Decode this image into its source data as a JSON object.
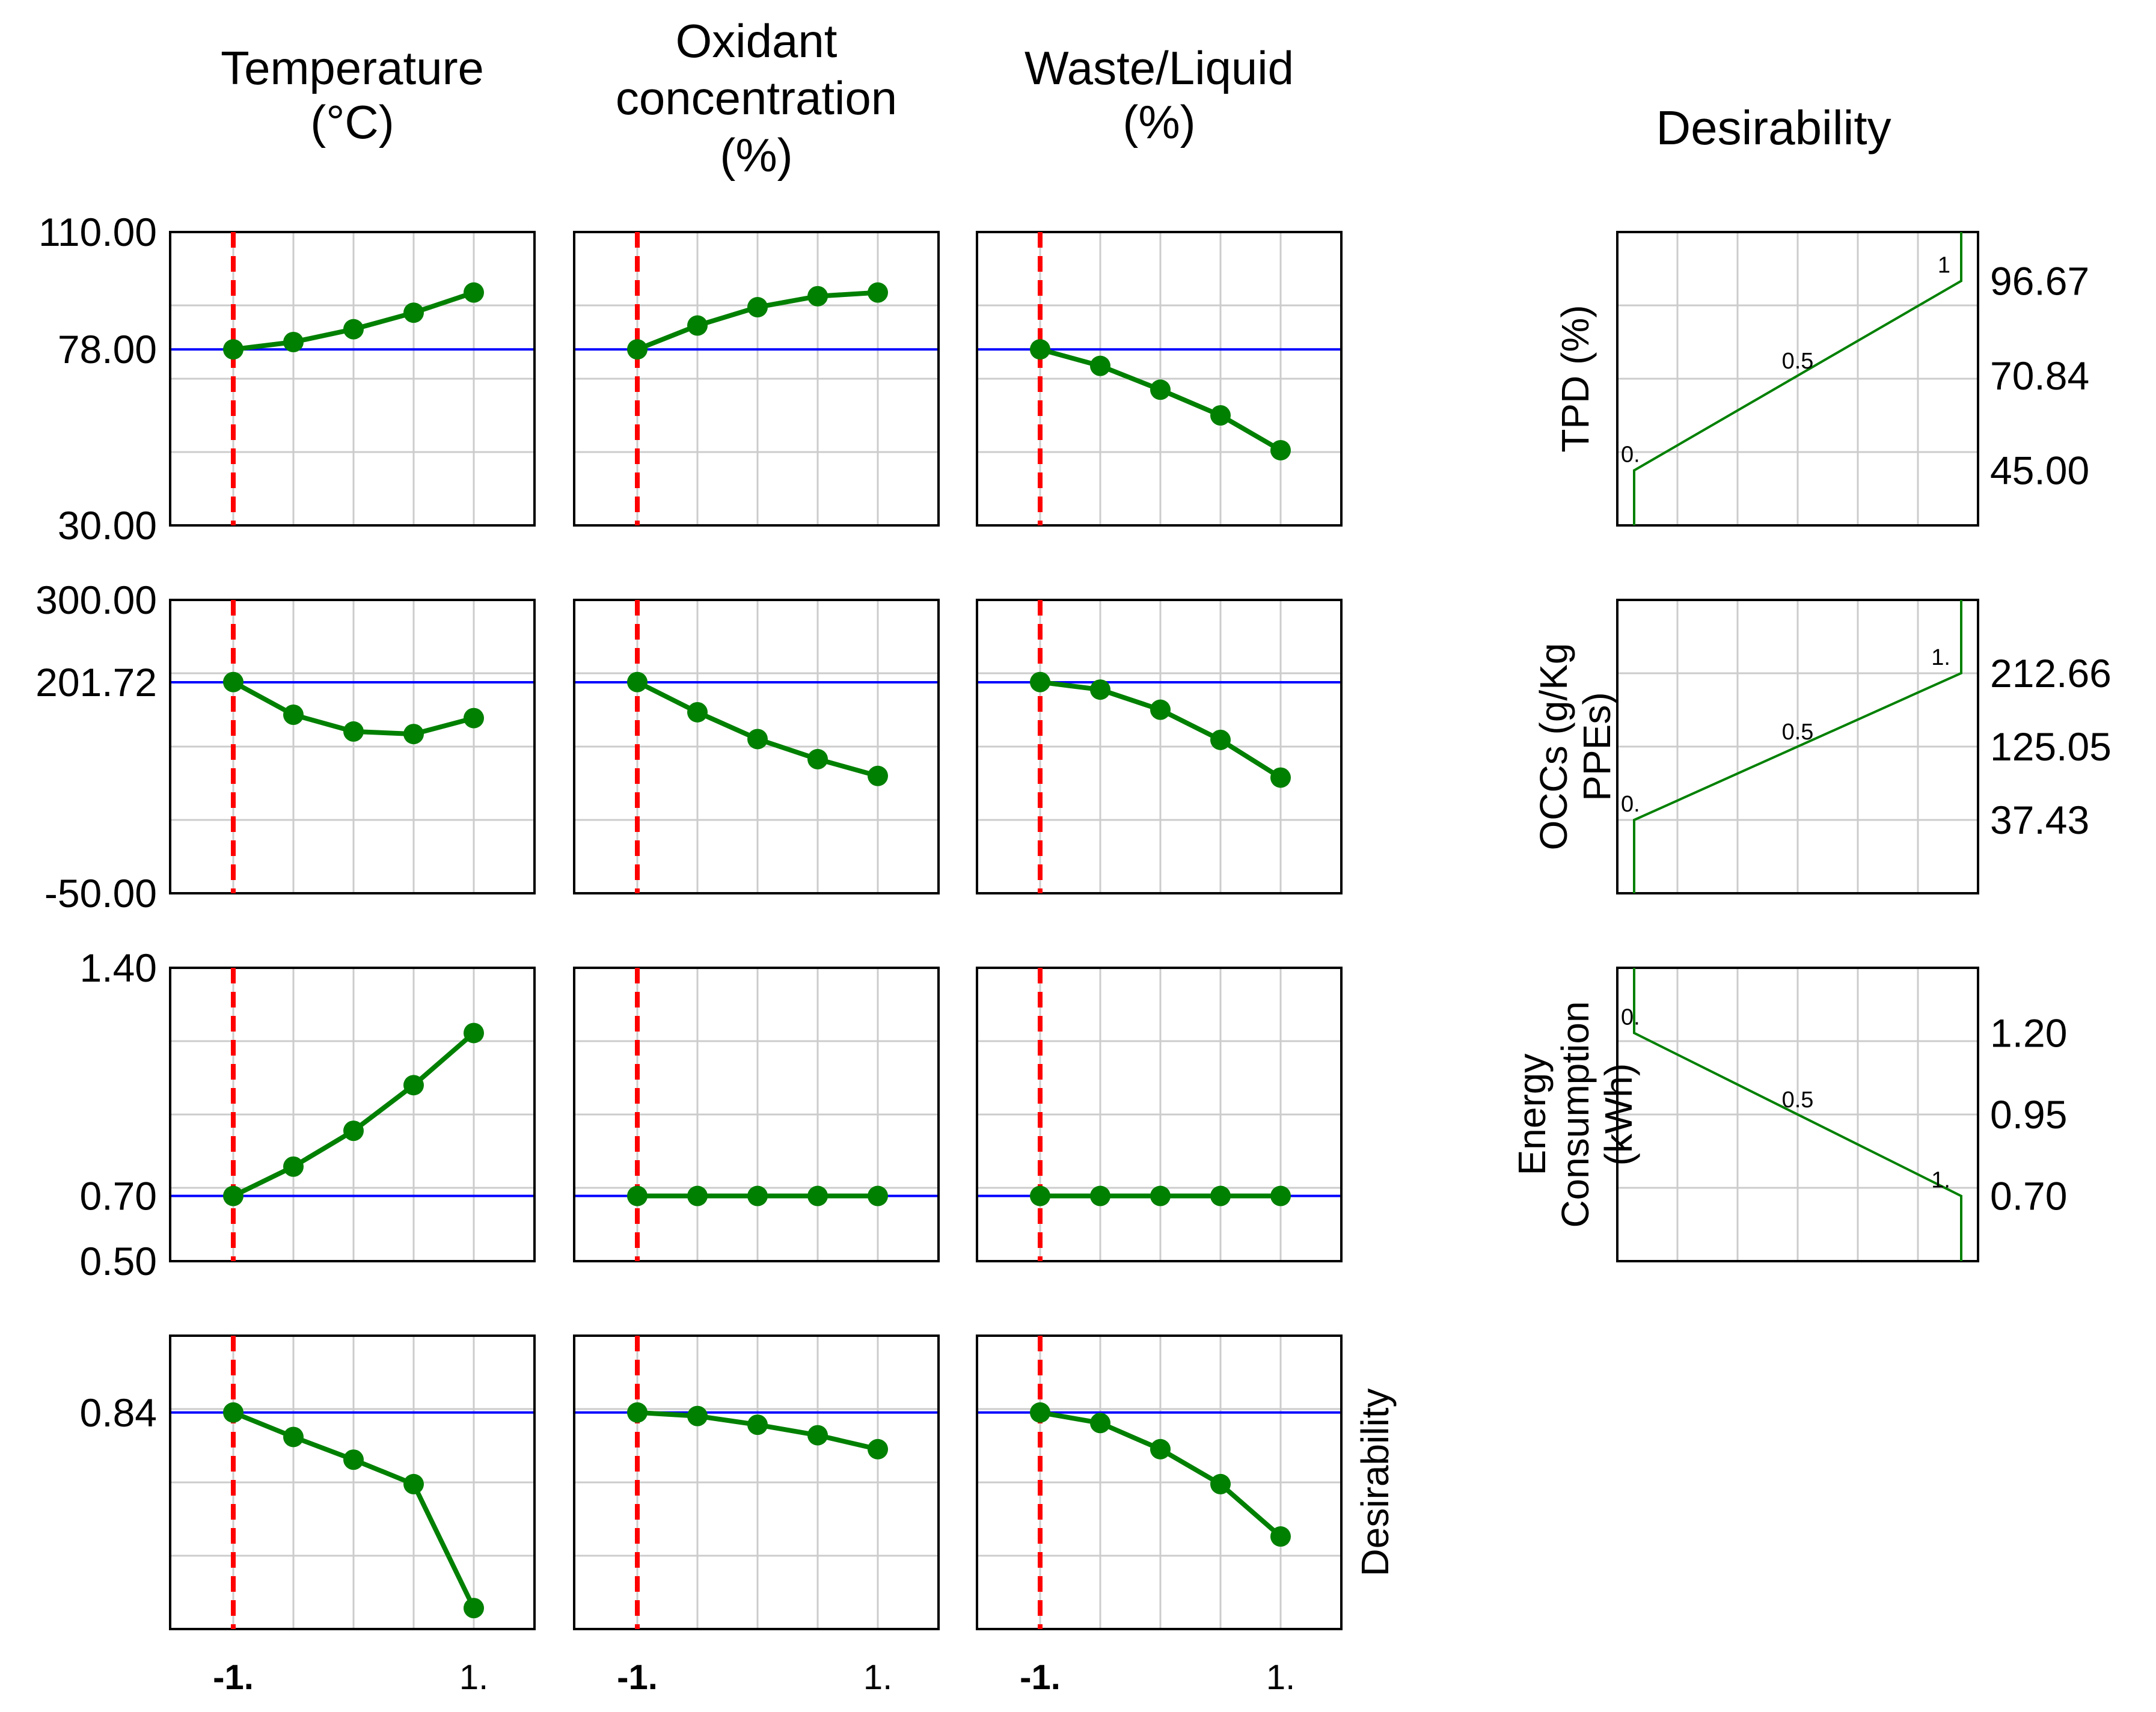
{
  "chart_data": {
    "type": "line",
    "title": "",
    "column_titles": [
      [
        "Temperature",
        "(°C)"
      ],
      [
        "Oxidant",
        "concentration",
        "(%)"
      ],
      [
        "Waste/Liquid",
        "(%)"
      ]
    ],
    "x_levels": [
      -1,
      -0.5,
      0,
      0.5,
      1
    ],
    "x_tick_labels": [
      "-1.",
      "1."
    ],
    "current_x": -1,
    "colors": {
      "series": "#008000",
      "current_value_line": "#0000ff",
      "factor_setting_line": "#ff0000",
      "grid": "#cccccc"
    },
    "rows": [
      {
        "response": "TPD (%)",
        "ylim": [
          30,
          110
        ],
        "y_tick_labels": [
          "110.00",
          "78.00",
          "30.00"
        ],
        "y_tick_values": [
          110,
          78,
          30
        ],
        "current_value": 78,
        "panels": [
          [
            78,
            80,
            83.5,
            88,
            93.5
          ],
          [
            78,
            84.5,
            89.5,
            92.5,
            93.5
          ],
          [
            78,
            73.5,
            67,
            60,
            50.5
          ]
        ]
      },
      {
        "response": "OCCs (g/Kg PPEs)",
        "ylim": [
          -50,
          300
        ],
        "y_tick_labels": [
          "300.00",
          "201.72",
          "-50.00"
        ],
        "y_tick_values": [
          300,
          201.72,
          -50
        ],
        "current_value": 201.72,
        "panels": [
          [
            202,
            163,
            143,
            140,
            159
          ],
          [
            202,
            166,
            134,
            110,
            90
          ],
          [
            202,
            193,
            169,
            133,
            88
          ]
        ]
      },
      {
        "response": "Energy Consumption (kWh)",
        "ylim": [
          0.5,
          1.4
        ],
        "y_tick_labels": [
          "1.40",
          "0.70",
          "0.50"
        ],
        "y_tick_values": [
          1.4,
          0.7,
          0.5
        ],
        "current_value": 0.7,
        "panels": [
          [
            0.7,
            0.79,
            0.9,
            1.04,
            1.2
          ],
          [
            0.7,
            0.7,
            0.7,
            0.7,
            0.7
          ],
          [
            0.7,
            0.7,
            0.7,
            0.7,
            0.7
          ]
        ]
      },
      {
        "response": "Desirability",
        "ylim": [
          0.22,
          1.06
        ],
        "y_tick_labels": [
          "0.84"
        ],
        "y_tick_values": [
          0.84
        ],
        "current_value": 0.84,
        "panels": [
          [
            0.84,
            0.77,
            0.705,
            0.635,
            0.28
          ],
          [
            0.84,
            0.83,
            0.805,
            0.775,
            0.735
          ],
          [
            0.84,
            0.81,
            0.735,
            0.635,
            0.485
          ]
        ]
      }
    ],
    "desirability": {
      "title": "Desirability",
      "panels": [
        {
          "ylabel_lines": [
            "TPD (%)"
          ],
          "ylim": [
            30,
            110
          ],
          "y_tick_labels": [
            "96.67",
            "70.84",
            "45.00"
          ],
          "y_tick_values": [
            96.67,
            70.84,
            45
          ],
          "curve": [
            [
              0,
              30
            ],
            [
              0,
              45
            ],
            [
              1,
              96.67
            ],
            [
              1,
              110
            ]
          ],
          "annotations": [
            "0.",
            "0.5",
            "1"
          ]
        },
        {
          "ylabel_lines": [
            "OCCs (g/Kg",
            "PPEs)"
          ],
          "ylim": [
            -50,
            300
          ],
          "y_tick_labels": [
            "212.66",
            "125.05",
            "37.43"
          ],
          "y_tick_values": [
            212.66,
            125.05,
            37.43
          ],
          "curve": [
            [
              0,
              -50
            ],
            [
              0,
              37.43
            ],
            [
              1,
              212.66
            ],
            [
              1,
              300
            ]
          ],
          "annotations": [
            "0.",
            "0.5",
            "1."
          ]
        },
        {
          "ylabel_lines": [
            "Energy",
            "Consumption",
            "(kWh)"
          ],
          "ylim": [
            0.5,
            1.4
          ],
          "y_tick_labels": [
            "1.20",
            "0.95",
            "0.70"
          ],
          "y_tick_values": [
            1.2,
            0.95,
            0.7
          ],
          "curve": [
            [
              0,
              1.4
            ],
            [
              0,
              1.2
            ],
            [
              1,
              0.7
            ],
            [
              1,
              0.5
            ]
          ],
          "annotations": [
            "0.",
            "0.5",
            "1."
          ]
        }
      ]
    }
  }
}
